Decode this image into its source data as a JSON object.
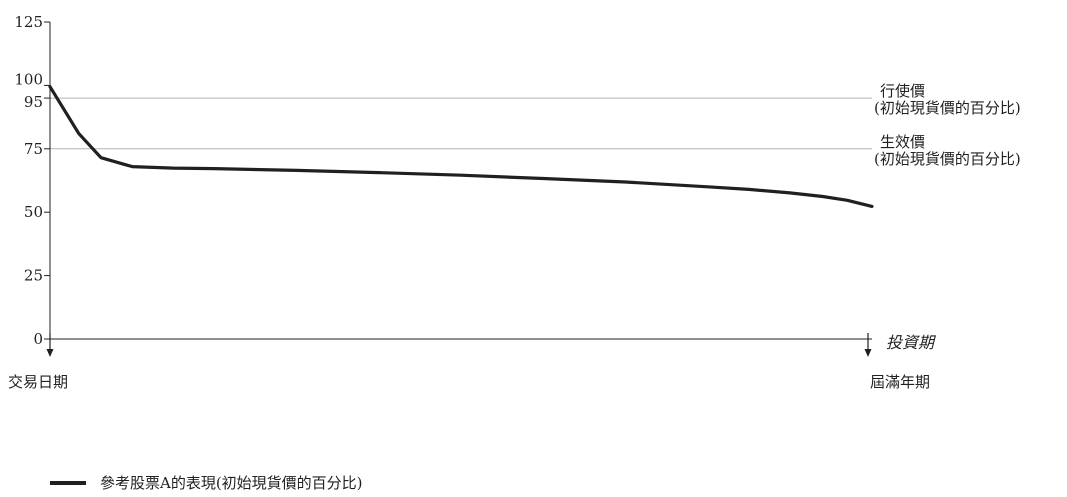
{
  "chart_data": {
    "type": "line",
    "title": "",
    "xlabel": "投資期",
    "ylabel": "",
    "ylim": [
      0,
      125
    ],
    "yticks": [
      0,
      25,
      50,
      75,
      95,
      100,
      125
    ],
    "x_start_label": "交易日期",
    "x_end_label": "屆滿年期",
    "reference_lines": [
      {
        "value": 95,
        "label_line1": "行使價",
        "label_line2": "(初始現貨價的百分比)"
      },
      {
        "value": 75,
        "label_line1": "生效價",
        "label_line2": "(初始現貨價的百分比)"
      }
    ],
    "x": [
      0,
      0.035,
      0.062,
      0.1,
      0.15,
      0.2,
      0.3,
      0.4,
      0.5,
      0.6,
      0.7,
      0.8,
      0.85,
      0.9,
      0.94,
      0.97,
      1.0
    ],
    "series": [
      {
        "name": "參考股票A的表現(初始現貨價的百分比)",
        "color": "#231f20",
        "values": [
          99.5,
          81,
          71.5,
          68,
          67.4,
          67.2,
          66.5,
          65.6,
          64.6,
          63.3,
          61.9,
          60.0,
          59.0,
          57.6,
          56.2,
          54.7,
          52.3
        ]
      }
    ],
    "grid": false,
    "legend_position": "bottom-left",
    "reference_line_color": "#b3b3b3"
  }
}
